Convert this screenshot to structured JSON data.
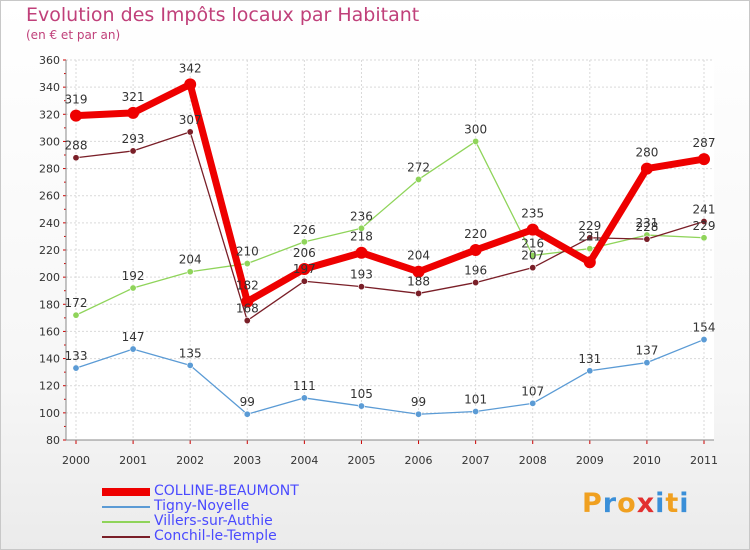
{
  "title": "Evolution des Impôts locaux par Habitant",
  "subtitle": "(en € et par an)",
  "logo": {
    "text": "Proxiti",
    "letters": [
      "P",
      "r",
      "o",
      "x",
      "i",
      "t",
      "i"
    ],
    "colors": [
      "#f0a020",
      "#3a8fd8",
      "#f0a020",
      "#e23030",
      "#3a8fd8",
      "#f0a020",
      "#3a8fd8"
    ]
  },
  "chart_data": {
    "type": "line",
    "title": "Evolution des Impôts locaux par Habitant",
    "subtitle": "(en € et par an)",
    "xlabel": "",
    "ylabel": "",
    "x": [
      "2000",
      "2001",
      "2002",
      "2003",
      "2004",
      "2005",
      "2006",
      "2007",
      "2008",
      "2009",
      "2010",
      "2011"
    ],
    "ylim": [
      80,
      360
    ],
    "yticks": [
      80,
      100,
      120,
      140,
      160,
      180,
      200,
      220,
      240,
      260,
      280,
      300,
      320,
      340,
      360
    ],
    "grid": true,
    "legend_position": "bottom-left",
    "series": [
      {
        "name": "COLLINE-BEAUMONT",
        "color": "#ee0000",
        "emphasis": "thick",
        "values": [
          319,
          321,
          342,
          182,
          206,
          218,
          204,
          220,
          235,
          211,
          280,
          287
        ],
        "labels": [
          "319",
          "321",
          "342",
          "182",
          "206",
          "218",
          "204",
          "220",
          "235",
          "",
          "280",
          "287"
        ]
      },
      {
        "name": "Tigny-Noyelle",
        "color": "#5b9bd5",
        "emphasis": "thin",
        "values": [
          133,
          147,
          135,
          99,
          111,
          105,
          99,
          101,
          107,
          131,
          137,
          154
        ],
        "labels": [
          "133",
          "147",
          "135",
          "99",
          "111",
          "105",
          "99",
          "101",
          "107",
          "131",
          "137",
          "154"
        ]
      },
      {
        "name": "Villers-sur-Authie",
        "color": "#8fd45a",
        "emphasis": "thin",
        "values": [
          172,
          192,
          204,
          210,
          226,
          236,
          272,
          300,
          216,
          221,
          231,
          229
        ],
        "labels": [
          "172",
          "192",
          "204",
          "210",
          "226",
          "236",
          "272",
          "300",
          "216",
          "221",
          "231",
          "229"
        ]
      },
      {
        "name": "Conchil-le-Temple",
        "color": "#7a1f28",
        "emphasis": "thin",
        "values": [
          288,
          293,
          307,
          168,
          197,
          193,
          188,
          196,
          207,
          229,
          228,
          241
        ],
        "labels": [
          "288",
          "293",
          "307",
          "168",
          "197",
          "193",
          "188",
          "196",
          "207",
          "229",
          "228",
          "241"
        ]
      }
    ]
  }
}
